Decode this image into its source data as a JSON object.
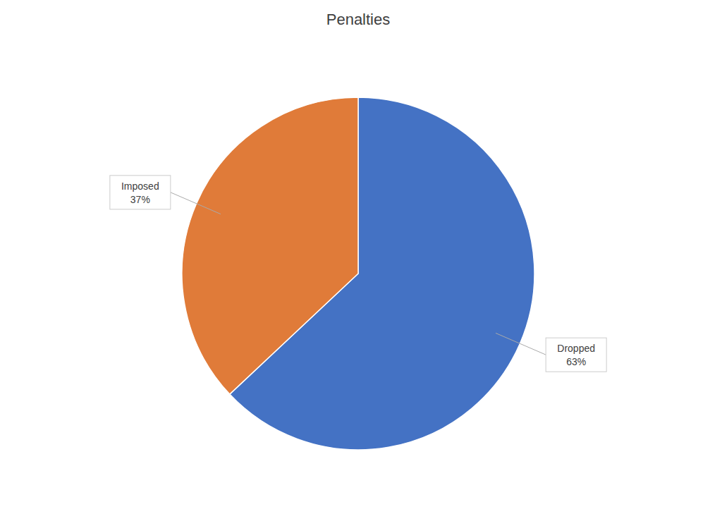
{
  "chart_data": {
    "type": "pie",
    "title": "Penalties",
    "categories": [
      "Dropped",
      "Imposed"
    ],
    "values": [
      63,
      37
    ],
    "value_labels": [
      "63%",
      "37%"
    ],
    "data_labels": true,
    "colors": [
      "#4472C4",
      "#E07B39"
    ]
  }
}
